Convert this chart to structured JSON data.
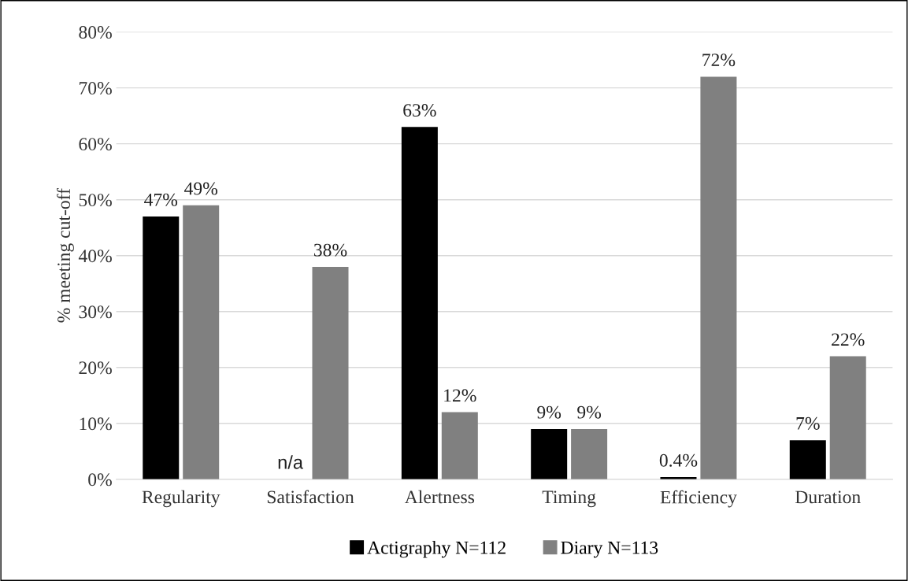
{
  "chart_data": {
    "type": "bar",
    "ylabel": "% meeting cut-off",
    "categories": [
      "Regularity",
      "Satisfaction",
      "Alertness",
      "Timing",
      "Efficiency",
      "Duration"
    ],
    "series": [
      {
        "name": "Actigraphy N=112",
        "color": "#000000",
        "values": [
          47,
          null,
          63,
          9,
          0.4,
          7
        ],
        "value_labels": [
          "47%",
          "n/a",
          "63%",
          "9%",
          "0.4%",
          "7%"
        ]
      },
      {
        "name": "Diary N=113",
        "color": "#808080",
        "values": [
          49,
          38,
          12,
          9,
          72,
          22
        ],
        "value_labels": [
          "49%",
          "38%",
          "12%",
          "9%",
          "72%",
          "22%"
        ]
      }
    ],
    "ylim": [
      0,
      80
    ],
    "yticks": [
      {
        "value": 0,
        "label": "0%"
      },
      {
        "value": 10,
        "label": "10%"
      },
      {
        "value": 20,
        "label": "20%"
      },
      {
        "value": 30,
        "label": "30%"
      },
      {
        "value": 40,
        "label": "40%"
      },
      {
        "value": 50,
        "label": "50%"
      },
      {
        "value": 60,
        "label": "60%"
      },
      {
        "value": 70,
        "label": "70%"
      },
      {
        "value": 80,
        "label": "80%"
      }
    ],
    "grid": "y",
    "legend": "bottom"
  }
}
